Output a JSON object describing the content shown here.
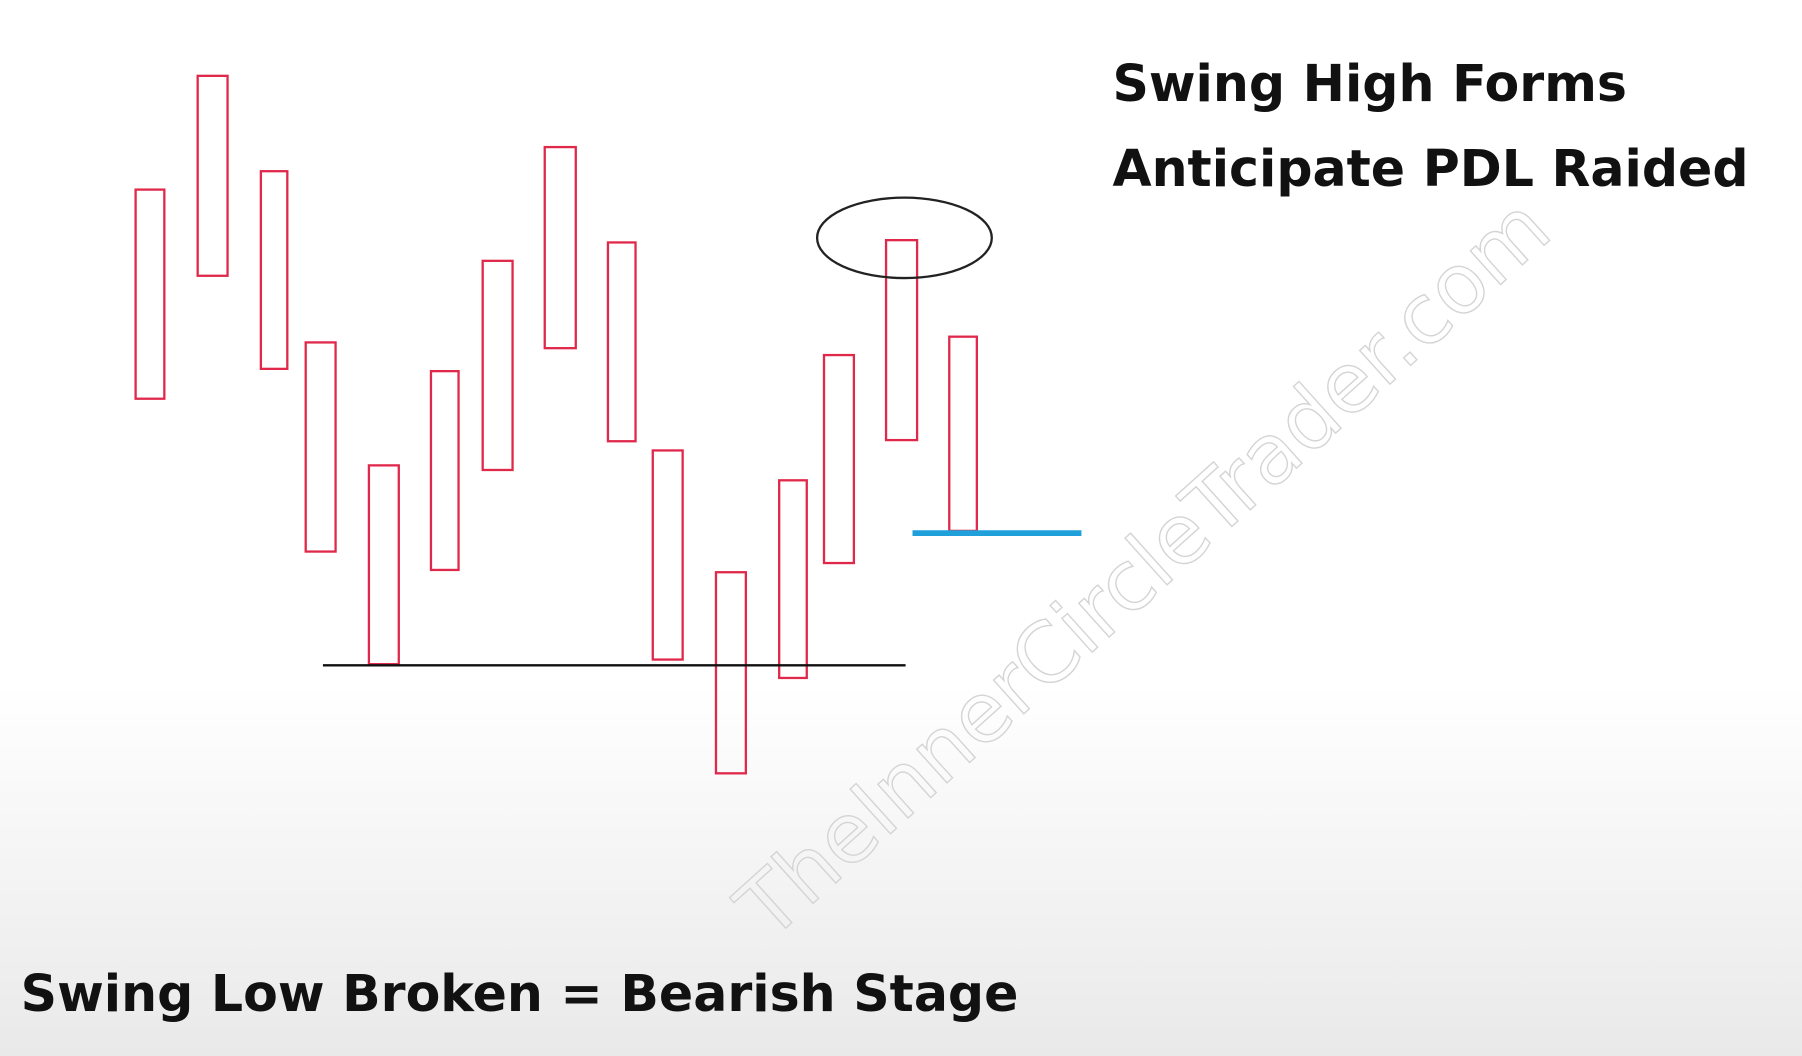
{
  "annotations": {
    "top_line_1": "Swing High Forms",
    "top_line_2": "Anticipate PDL Raided",
    "bottom": "Swing Low Broken = Bearish Stage"
  },
  "watermark": "TheInnerCircleTrader.com"
}
